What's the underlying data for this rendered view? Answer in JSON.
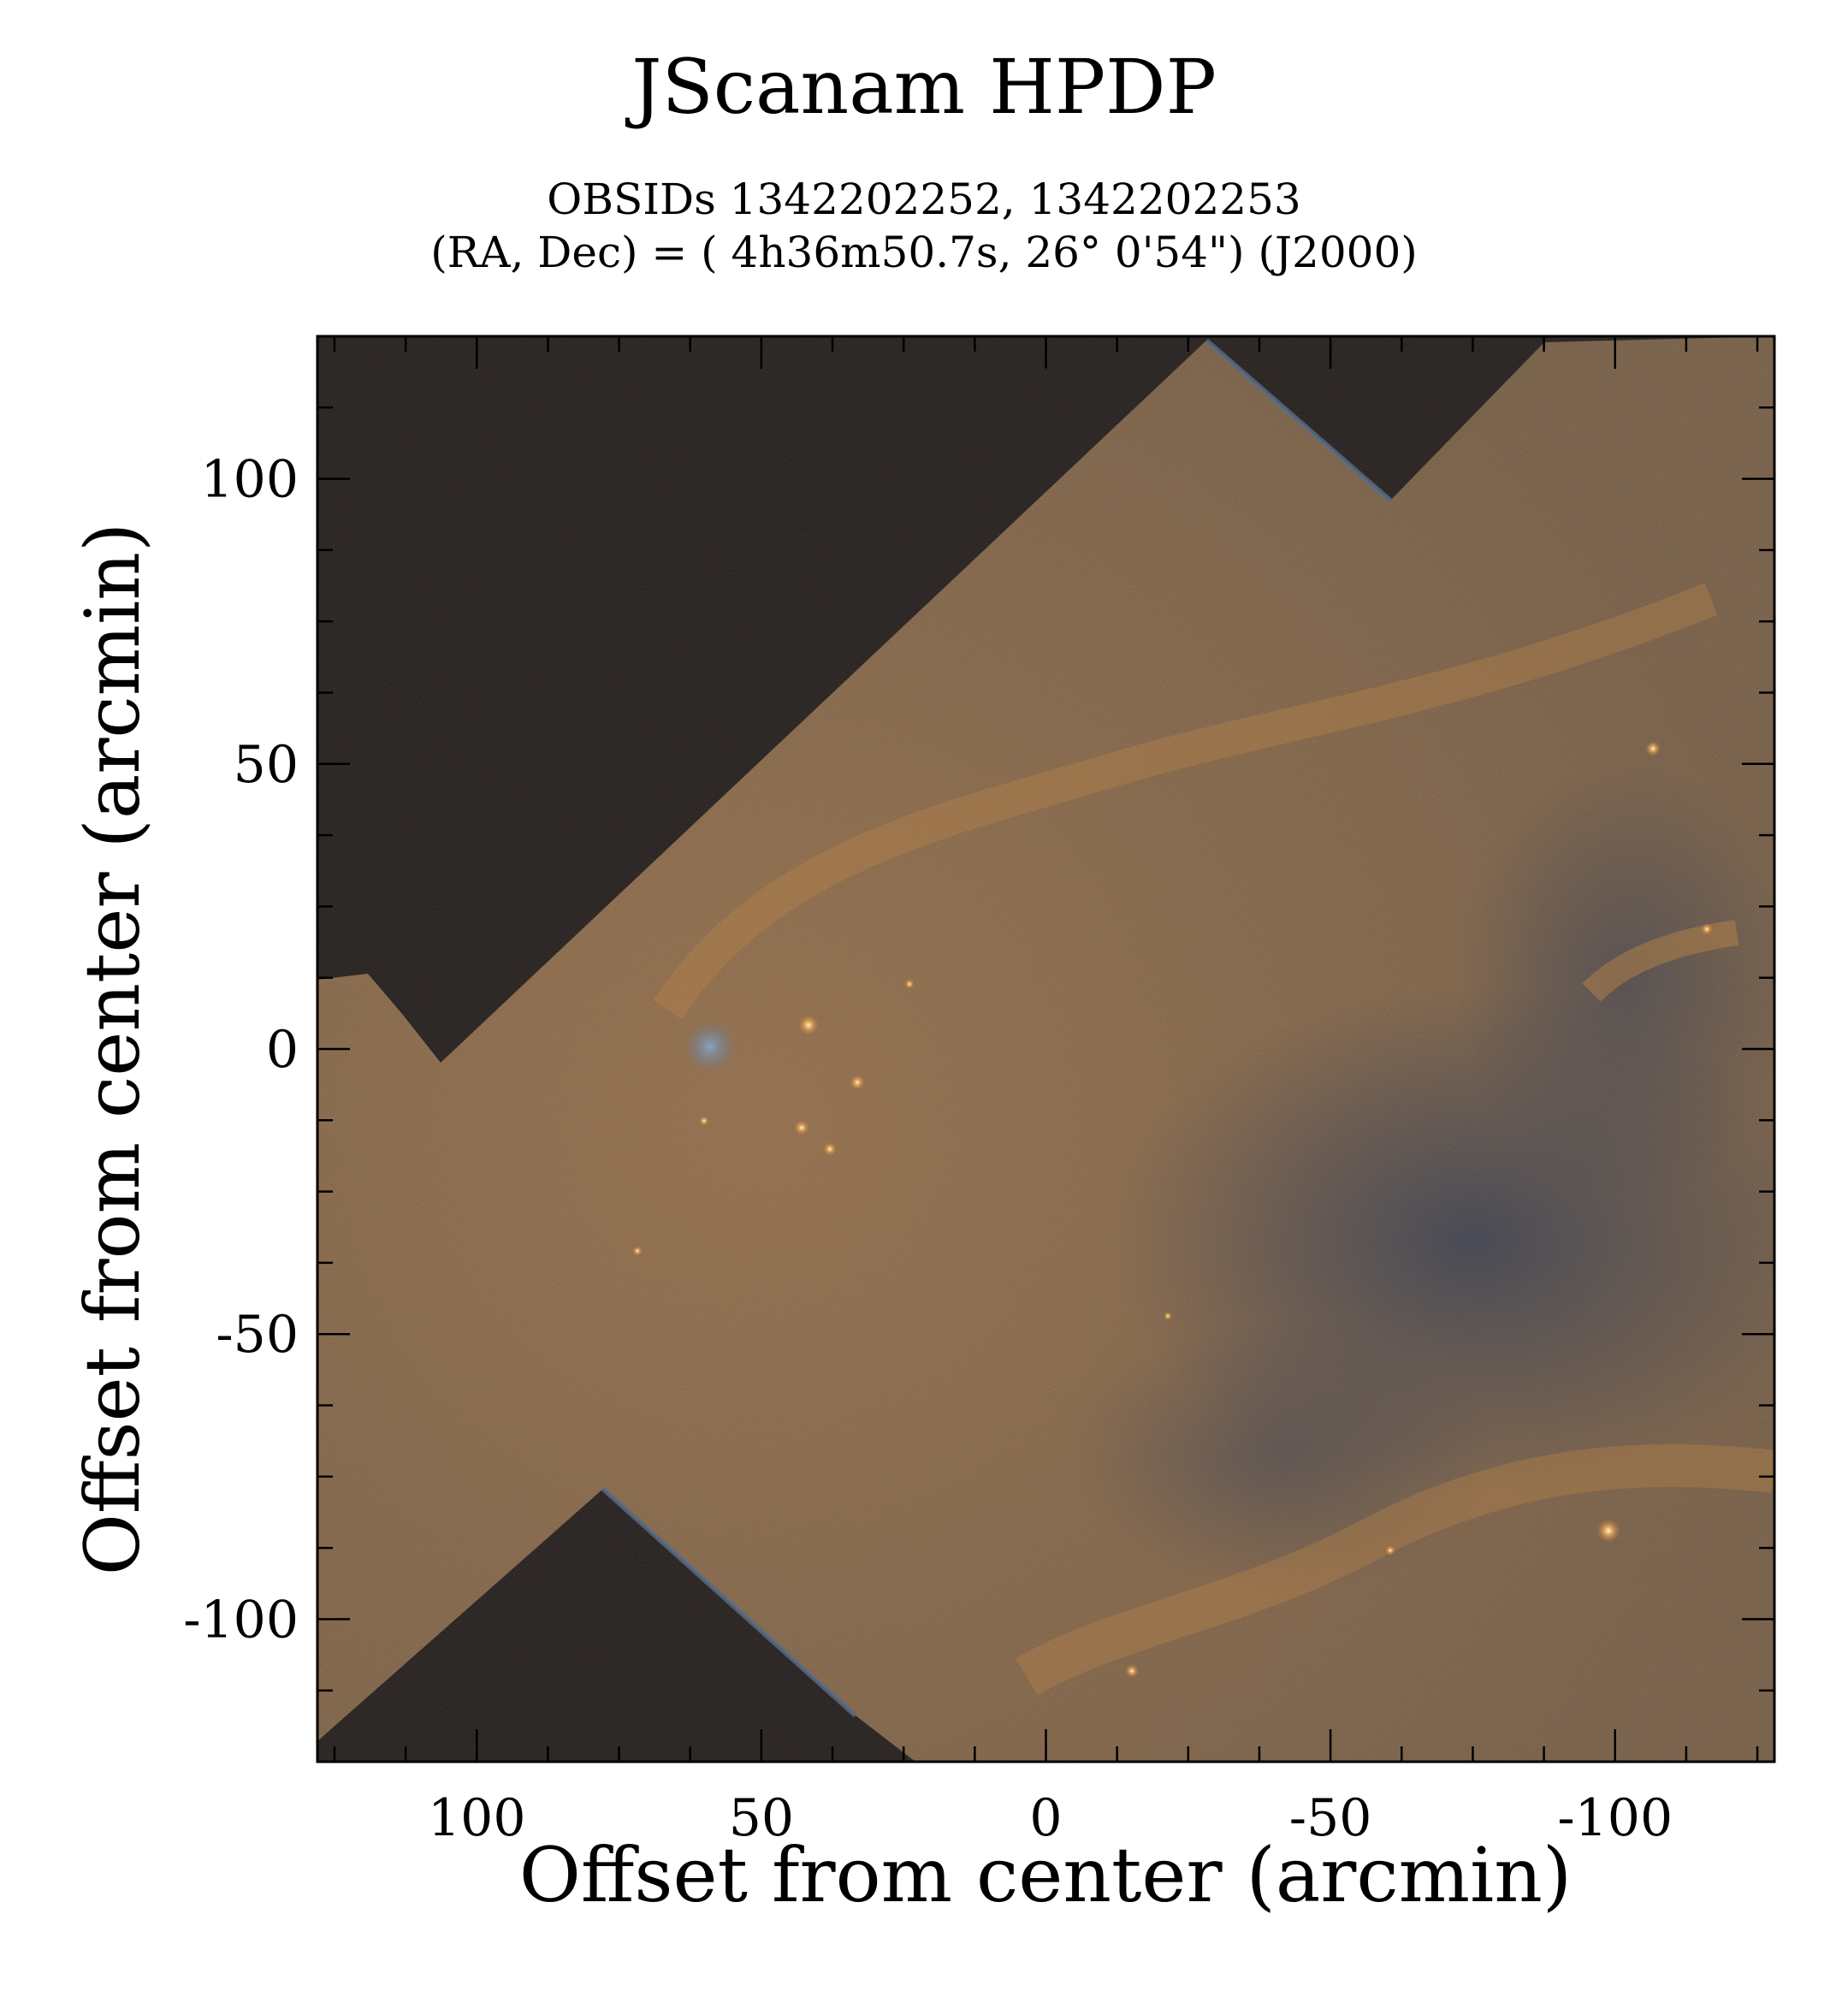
{
  "figure": {
    "title": "JScanam HPDP",
    "subtitle_line1": "OBSIDs 1342202252, 1342202253",
    "subtitle_line2": "(RA, Dec) = ( 4h36m50.7s, 26° 0'54\") (J2000)",
    "xlabel": "Offset from center (arcmin)",
    "ylabel": "Offset from center (arcmin)"
  },
  "axes": {
    "x_range": [
      128,
      -128
    ],
    "y_range": [
      -125,
      125
    ],
    "x_ticks": [
      100,
      50,
      0,
      -50,
      -100
    ],
    "x_tick_labels": [
      "100",
      "50",
      "0",
      "-50",
      "-100"
    ],
    "y_ticks": [
      100,
      50,
      0,
      -50,
      -100
    ],
    "y_tick_labels": [
      "100",
      "50",
      "0",
      "-50",
      "-100"
    ],
    "minor_tick_step": 12.5
  },
  "image": {
    "background_color": "#000000",
    "emission_color_warm": "#a0703a",
    "emission_color_cool": "#2f3e55",
    "noise_edge_color": "#5a6d86"
  }
}
